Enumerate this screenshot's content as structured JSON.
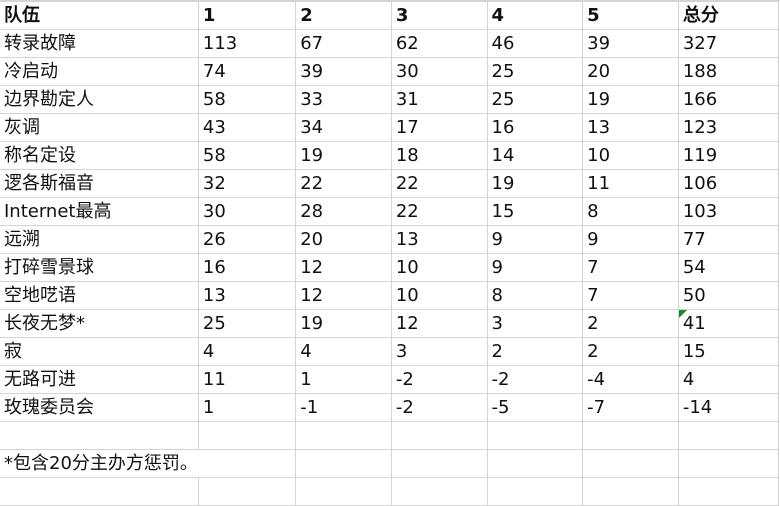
{
  "header": [
    "队伍",
    "1",
    "2",
    "3",
    "4",
    "5",
    "总分"
  ],
  "rows": [
    [
      "转录故障",
      "113",
      "67",
      "62",
      "46",
      "39",
      "327"
    ],
    [
      "冷启动",
      "74",
      "39",
      "30",
      "25",
      "20",
      "188"
    ],
    [
      "边界勘定人",
      "58",
      "33",
      "31",
      "25",
      "19",
      "166"
    ],
    [
      "灰调",
      "43",
      "34",
      "17",
      "16",
      "13",
      "123"
    ],
    [
      "称名定设",
      "58",
      "19",
      "18",
      "14",
      "10",
      "119"
    ],
    [
      "逻各斯福音",
      "32",
      "22",
      "22",
      "19",
      "11",
      "106"
    ],
    [
      "Internet最高",
      "30",
      "28",
      "22",
      "15",
      "8",
      "103"
    ],
    [
      "远溯",
      "26",
      "20",
      "13",
      "9",
      "9",
      "77"
    ],
    [
      "打碎雪景球",
      "16",
      "12",
      "10",
      "9",
      "7",
      "54"
    ],
    [
      "空地呓语",
      "13",
      "12",
      "10",
      "8",
      "7",
      "50"
    ],
    [
      "长夜无梦*",
      "25",
      "19",
      "12",
      "3",
      "2",
      "41"
    ],
    [
      "寂",
      "4",
      "4",
      "3",
      "2",
      "2",
      "15"
    ],
    [
      "无路可进",
      "11",
      "1",
      "-2",
      "-2",
      "-4",
      "4"
    ],
    [
      "玫瑰委员会",
      "1",
      "-1",
      "-2",
      "-5",
      "-7",
      "-14"
    ]
  ],
  "footnote": "*包含20分主办方惩罚。",
  "colors": {
    "grid": "#d4d4d4",
    "error_indicator": "#1a8a2a"
  }
}
